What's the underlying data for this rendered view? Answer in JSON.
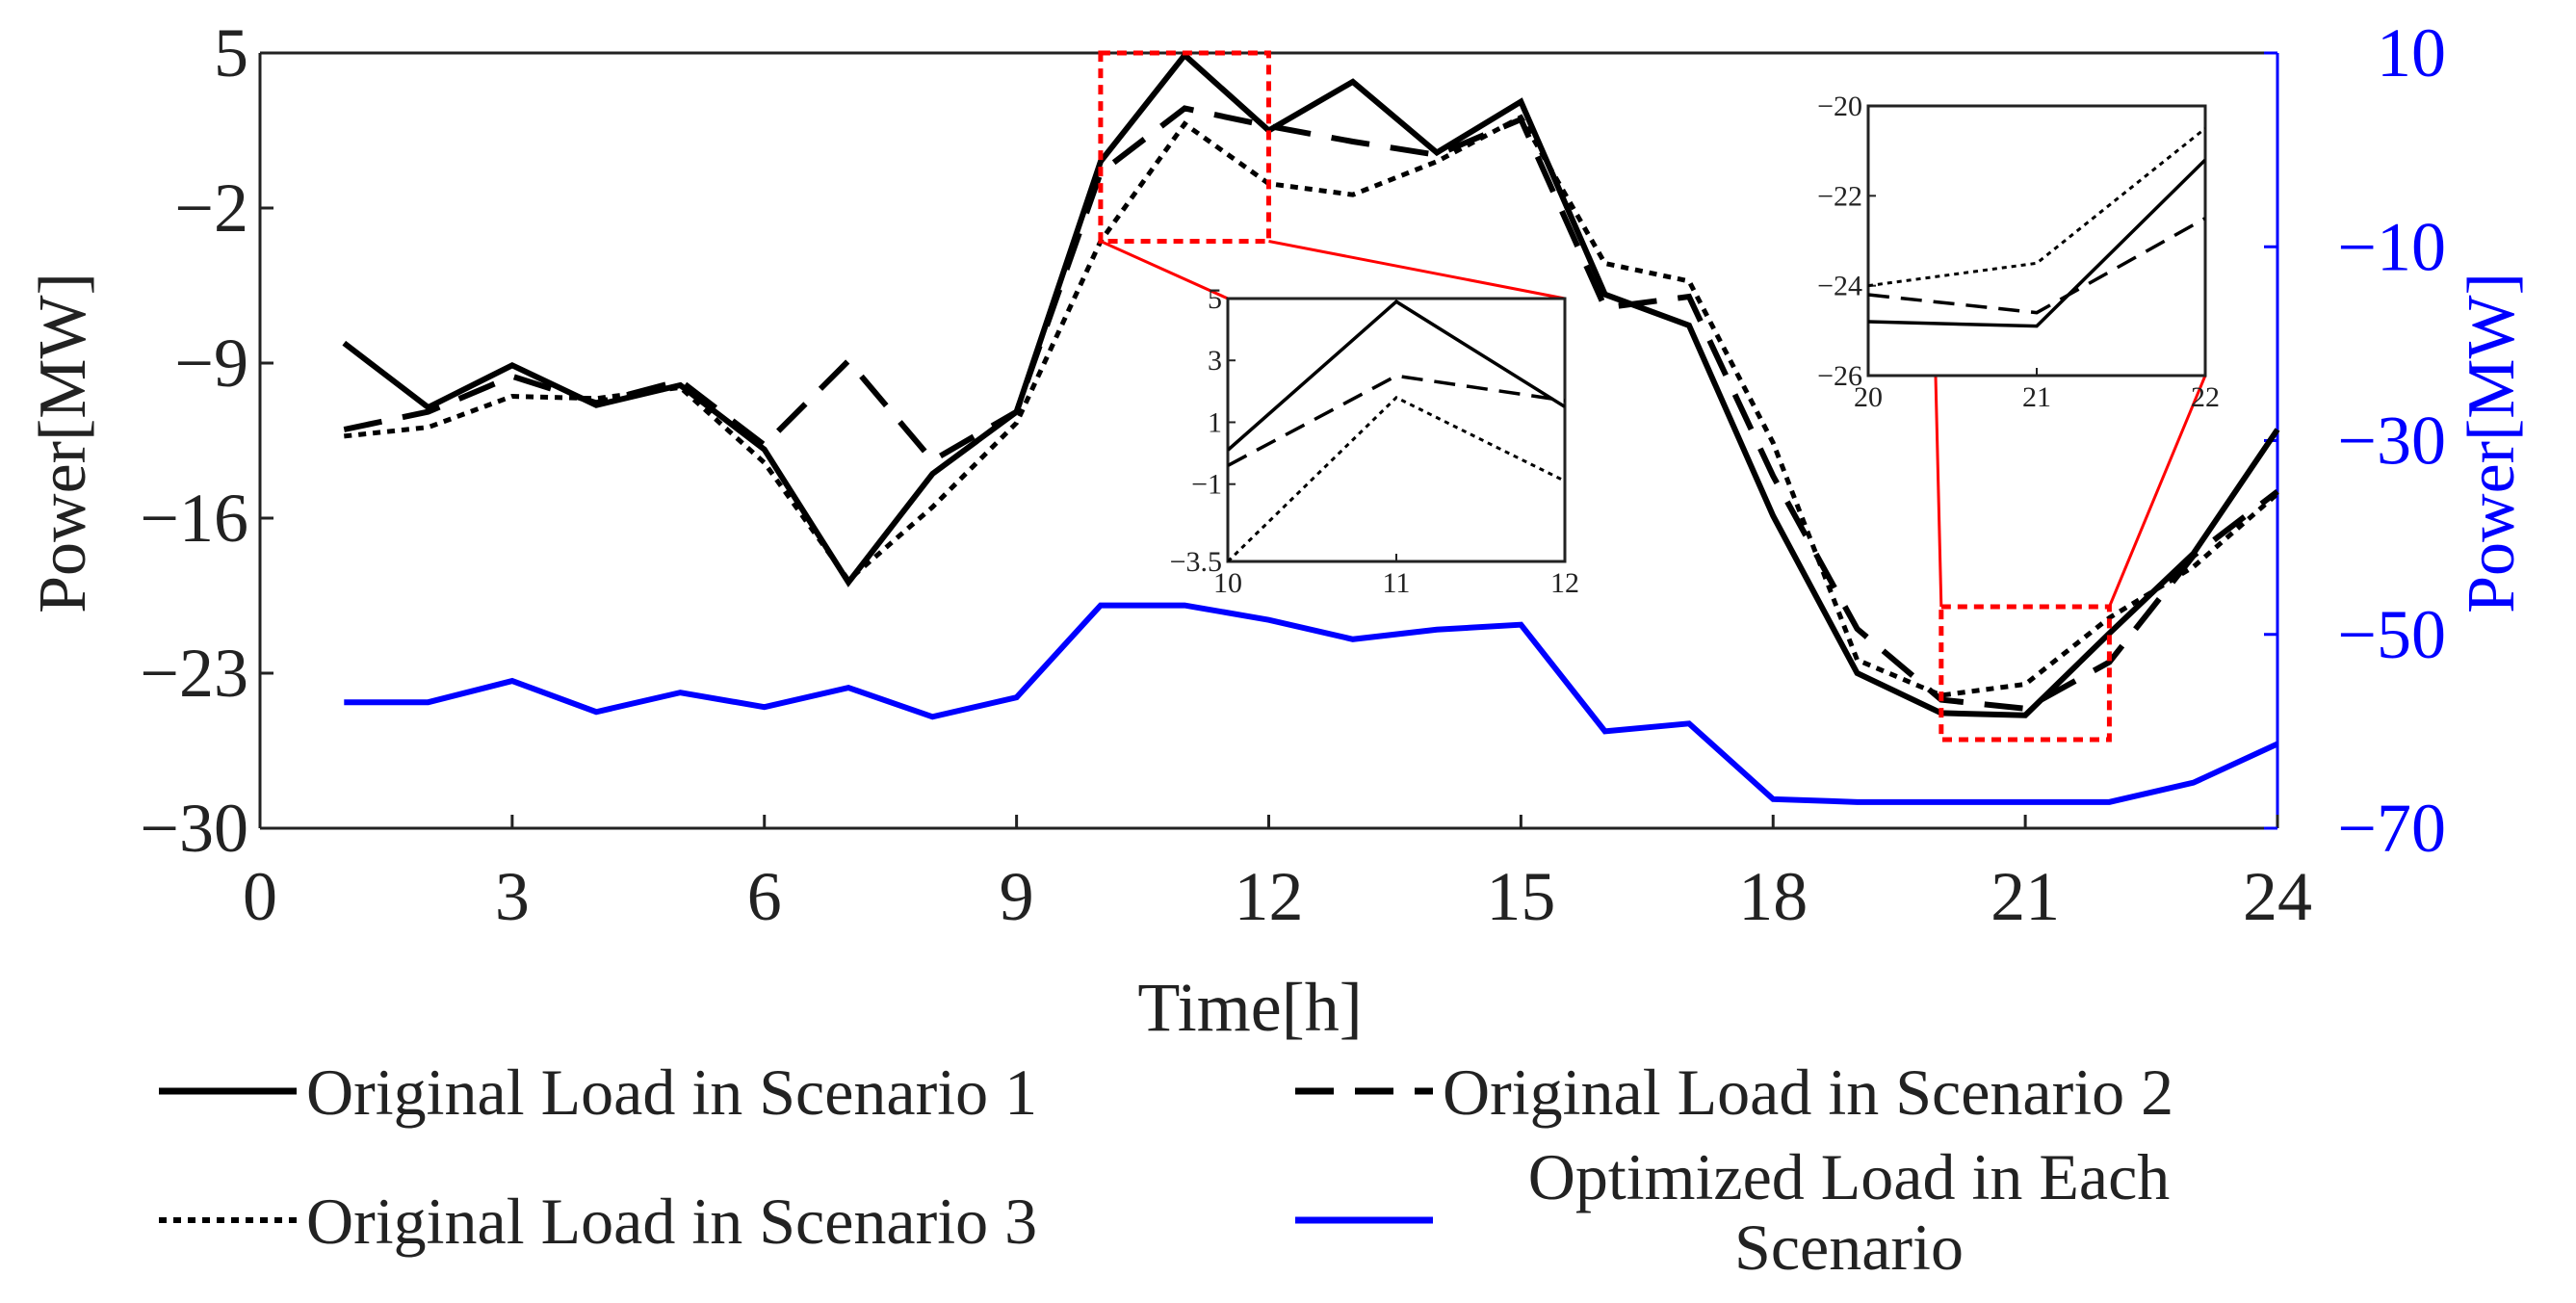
{
  "chart_data": {
    "type": "line",
    "xlabel": "Time[h]",
    "ylabel_left": "Power[MW]",
    "ylabel_right": "Power[MW]",
    "xlim": [
      0,
      24
    ],
    "ylim_left": [
      -30,
      5
    ],
    "ylim_right": [
      -70,
      10
    ],
    "x_ticks": [
      "0",
      "3",
      "6",
      "9",
      "12",
      "15",
      "18",
      "21",
      "24"
    ],
    "y_ticks_left": [
      "5",
      "−2",
      "−9",
      "−16",
      "−23",
      "−30"
    ],
    "y_ticks_right": [
      "10",
      "−10",
      "−30",
      "−50",
      "−70"
    ],
    "x": [
      1,
      2,
      3,
      4,
      5,
      6,
      7,
      8,
      9,
      10,
      11,
      12,
      13,
      14,
      15,
      16,
      17,
      18,
      19,
      20,
      21,
      22,
      23,
      24
    ],
    "series": [
      {
        "name": "Original Load in Scenario 1",
        "axis": "left",
        "style": "solid",
        "color": "#000000",
        "values": [
          -8.1,
          -11.0,
          -9.1,
          -10.9,
          -10.0,
          -12.9,
          -18.9,
          -14.0,
          -11.2,
          0.1,
          4.9,
          1.5,
          3.7,
          0.5,
          2.8,
          -5.9,
          -7.3,
          -15.9,
          -23.0,
          -24.8,
          -24.9,
          -21.2,
          -17.6,
          -12.0
        ]
      },
      {
        "name": "Original Load in Scenario 2",
        "axis": "left",
        "style": "dashed",
        "color": "#000000",
        "values": [
          -12.0,
          -11.2,
          -9.6,
          -10.8,
          -9.8,
          -12.7,
          -8.9,
          -13.4,
          -11.2,
          -0.4,
          2.5,
          1.7,
          1.0,
          0.4,
          2.0,
          -6.5,
          -6.0,
          -14.1,
          -21.0,
          -24.2,
          -24.6,
          -22.5,
          -17.7,
          -14.8
        ]
      },
      {
        "name": "Original Load in Scenario 3",
        "axis": "left",
        "style": "dotted",
        "color": "#000000",
        "values": [
          -12.3,
          -11.9,
          -10.5,
          -10.6,
          -10.1,
          -13.5,
          -18.8,
          -15.5,
          -11.7,
          -3.5,
          1.8,
          -0.9,
          -1.4,
          0.1,
          2.1,
          -4.5,
          -5.3,
          -12.6,
          -22.4,
          -24.0,
          -23.5,
          -20.5,
          -18.2,
          -14.9
        ]
      },
      {
        "name": "Optimized Load in Each Scenario",
        "axis": "right",
        "style": "solid",
        "color": "#0000ff",
        "values": [
          -57,
          -57,
          -54.8,
          -58,
          -56,
          -57.5,
          -55.5,
          -58.5,
          -56.5,
          -47,
          -47,
          -48.5,
          -50.5,
          -49.5,
          -49,
          -60,
          -59.2,
          -67,
          -67.3,
          -67.3,
          -67.3,
          -67.3,
          -65.3,
          -61.3
        ]
      }
    ],
    "insets": [
      {
        "xlim": [
          10,
          12
        ],
        "ylim": [
          -3.5,
          5
        ],
        "x_ticks": [
          "10",
          "11",
          "12"
        ],
        "y_ticks": [
          "5",
          "3",
          "1",
          "−1",
          "−3.5"
        ]
      },
      {
        "xlim": [
          20,
          22
        ],
        "ylim": [
          -26,
          -20
        ],
        "x_ticks": [
          "20",
          "21",
          "22"
        ],
        "y_ticks": [
          "−20",
          "−22",
          "−24",
          "−26"
        ]
      }
    ],
    "legend": {
      "placement": "bottom",
      "labels": [
        "Original Load in Scenario 1",
        "Original Load in Scenario 2",
        "Original Load in Scenario 3",
        "Optimized Load in Each",
        "Scenario"
      ]
    }
  }
}
